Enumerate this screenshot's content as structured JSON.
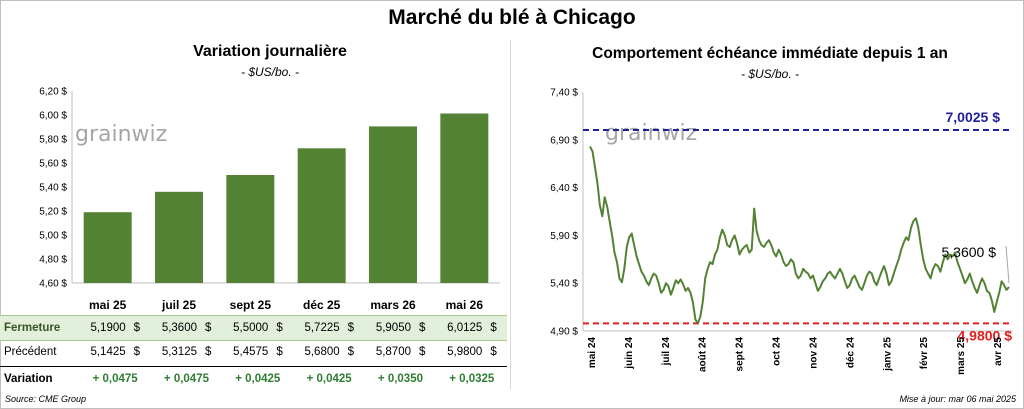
{
  "title": "Marché du blé à Chicago",
  "footer": {
    "source": "Source: CME Group",
    "updated": "Mise à jour: mar 06 mai 2025"
  },
  "watermark": "grainwiz",
  "colors": {
    "bar": "#548235",
    "line": "#548235",
    "high_line": "#1f1f9f",
    "low_line": "#e02020",
    "row_highlight": "#e2efda",
    "positive": "#2e7d32"
  },
  "chart_data": [
    {
      "type": "bar",
      "title": "Variation journalière",
      "subtitle": "- $US/bo. -",
      "categories": [
        "mai 25",
        "juil 25",
        "sept 25",
        "déc 25",
        "mars 26",
        "mai 26"
      ],
      "values": [
        5.19,
        5.36,
        5.5,
        5.7225,
        5.905,
        6.0125
      ],
      "ylim": [
        4.6,
        6.2
      ],
      "yticks": [
        "4,60 $",
        "4,80 $",
        "5,00 $",
        "5,20 $",
        "5,40 $",
        "5,60 $",
        "5,80 $",
        "6,00 $",
        "6,20 $"
      ],
      "grid": false
    },
    {
      "type": "line",
      "title": "Comportement échéance immédiate depuis 1 an",
      "subtitle": "- $US/bo. -",
      "ylim": [
        4.9,
        7.4
      ],
      "yticks": [
        "4,90 $",
        "5,40 $",
        "5,90 $",
        "6,40 $",
        "6,90 $",
        "7,40 $"
      ],
      "xticks": [
        "mai 24",
        "juin 24",
        "juil 24",
        "août 24",
        "sept 24",
        "oct 24",
        "nov 24",
        "déc 24",
        "janv 25",
        "févr 25",
        "mars 25",
        "avr 25"
      ],
      "y": [
        6.83,
        6.78,
        6.62,
        6.45,
        6.22,
        6.1,
        6.3,
        6.2,
        6.05,
        5.9,
        5.72,
        5.62,
        5.45,
        5.41,
        5.55,
        5.78,
        5.88,
        5.92,
        5.8,
        5.68,
        5.6,
        5.52,
        5.48,
        5.42,
        5.38,
        5.45,
        5.5,
        5.48,
        5.4,
        5.3,
        5.33,
        5.4,
        5.37,
        5.28,
        5.35,
        5.43,
        5.4,
        5.44,
        5.39,
        5.32,
        5.35,
        5.3,
        5.2,
        5.02,
        4.98,
        5.05,
        5.2,
        5.45,
        5.55,
        5.62,
        5.6,
        5.7,
        5.75,
        5.88,
        5.96,
        5.9,
        5.8,
        5.78,
        5.85,
        5.9,
        5.82,
        5.7,
        5.75,
        5.78,
        5.8,
        5.72,
        5.75,
        6.18,
        5.95,
        5.85,
        5.8,
        5.78,
        5.82,
        5.85,
        5.8,
        5.72,
        5.68,
        5.75,
        5.7,
        5.62,
        5.58,
        5.6,
        5.65,
        5.62,
        5.5,
        5.45,
        5.48,
        5.55,
        5.52,
        5.5,
        5.45,
        5.48,
        5.4,
        5.32,
        5.36,
        5.42,
        5.45,
        5.5,
        5.52,
        5.48,
        5.45,
        5.5,
        5.55,
        5.5,
        5.42,
        5.35,
        5.38,
        5.45,
        5.48,
        5.42,
        5.36,
        5.33,
        5.4,
        5.48,
        5.52,
        5.5,
        5.42,
        5.38,
        5.45,
        5.52,
        5.58,
        5.5,
        5.38,
        5.42,
        5.5,
        5.58,
        5.65,
        5.75,
        5.82,
        5.88,
        5.85,
        5.98,
        6.05,
        6.08,
        5.98,
        5.8,
        5.65,
        5.55,
        5.5,
        5.45,
        5.55,
        5.6,
        5.58,
        5.52,
        5.62,
        5.7,
        5.65,
        5.7,
        5.68,
        5.72,
        5.62,
        5.55,
        5.48,
        5.4,
        5.44,
        5.5,
        5.42,
        5.35,
        5.3,
        5.38,
        5.45,
        5.4,
        5.32,
        5.3,
        5.22,
        5.1,
        5.2,
        5.3,
        5.42,
        5.38,
        5.33,
        5.36
      ],
      "reference_lines": [
        {
          "label": "7,0025 $",
          "value": 7.0025
        },
        {
          "label": "4,9800 $",
          "value": 4.98
        }
      ],
      "last_value_label": "5,3600 $",
      "grid": false
    }
  ],
  "table": {
    "rows": [
      {
        "label": "Fermeture",
        "values": [
          "5,1900",
          "5,3600",
          "5,5000",
          "5,7225",
          "5,9050",
          "6,0125"
        ],
        "suffix": "$"
      },
      {
        "label": "Précédent",
        "values": [
          "5,1425",
          "5,3125",
          "5,4575",
          "5,6800",
          "5,8700",
          "5,9800"
        ],
        "suffix": "$"
      },
      {
        "label": "Variation",
        "values": [
          "+ 0,0475",
          "+ 0,0475",
          "+ 0,0425",
          "+ 0,0425",
          "+ 0,0350",
          "+ 0,0325"
        ]
      }
    ]
  }
}
